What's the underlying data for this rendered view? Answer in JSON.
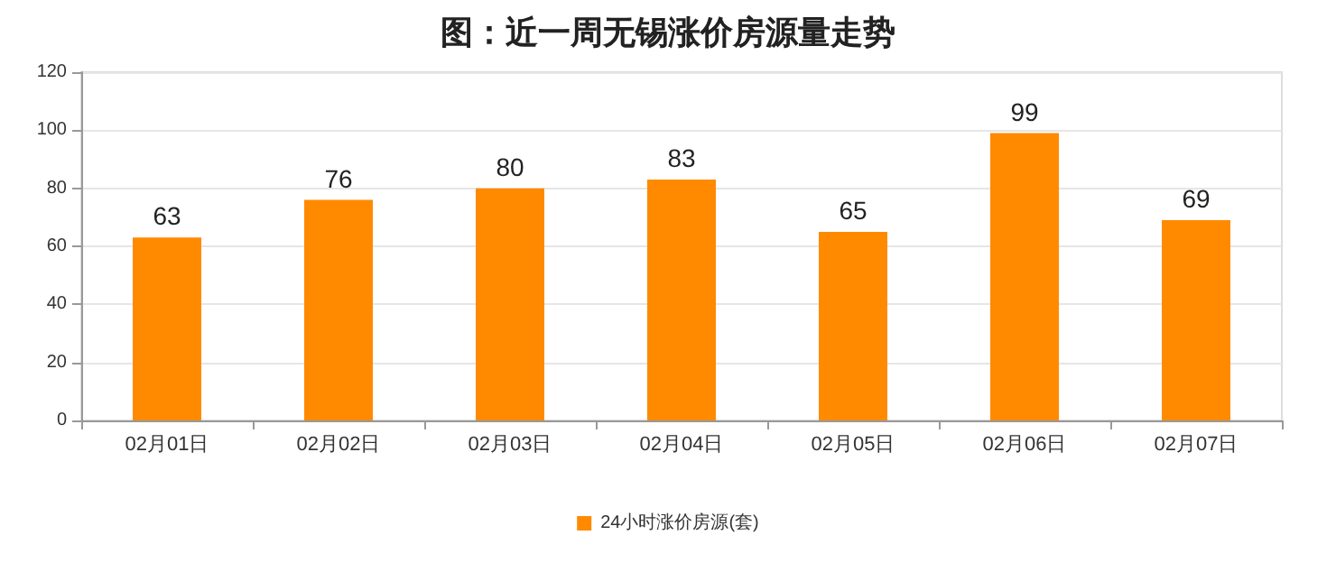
{
  "chart_data": {
    "type": "bar",
    "title": "图：近一周无锡涨价房源量走势",
    "categories": [
      "02月01日",
      "02月02日",
      "02月03日",
      "02月04日",
      "02月05日",
      "02月06日",
      "02月07日"
    ],
    "series": [
      {
        "name": "24小时涨价房源(套)",
        "color": "#ff8a00",
        "values": [
          63,
          76,
          80,
          83,
          65,
          99,
          69
        ]
      }
    ],
    "ylim": [
      0,
      120
    ],
    "yticks": [
      0,
      20,
      40,
      60,
      80,
      100,
      120
    ],
    "grid": "y",
    "legend": "bottom",
    "data_labels": true
  }
}
